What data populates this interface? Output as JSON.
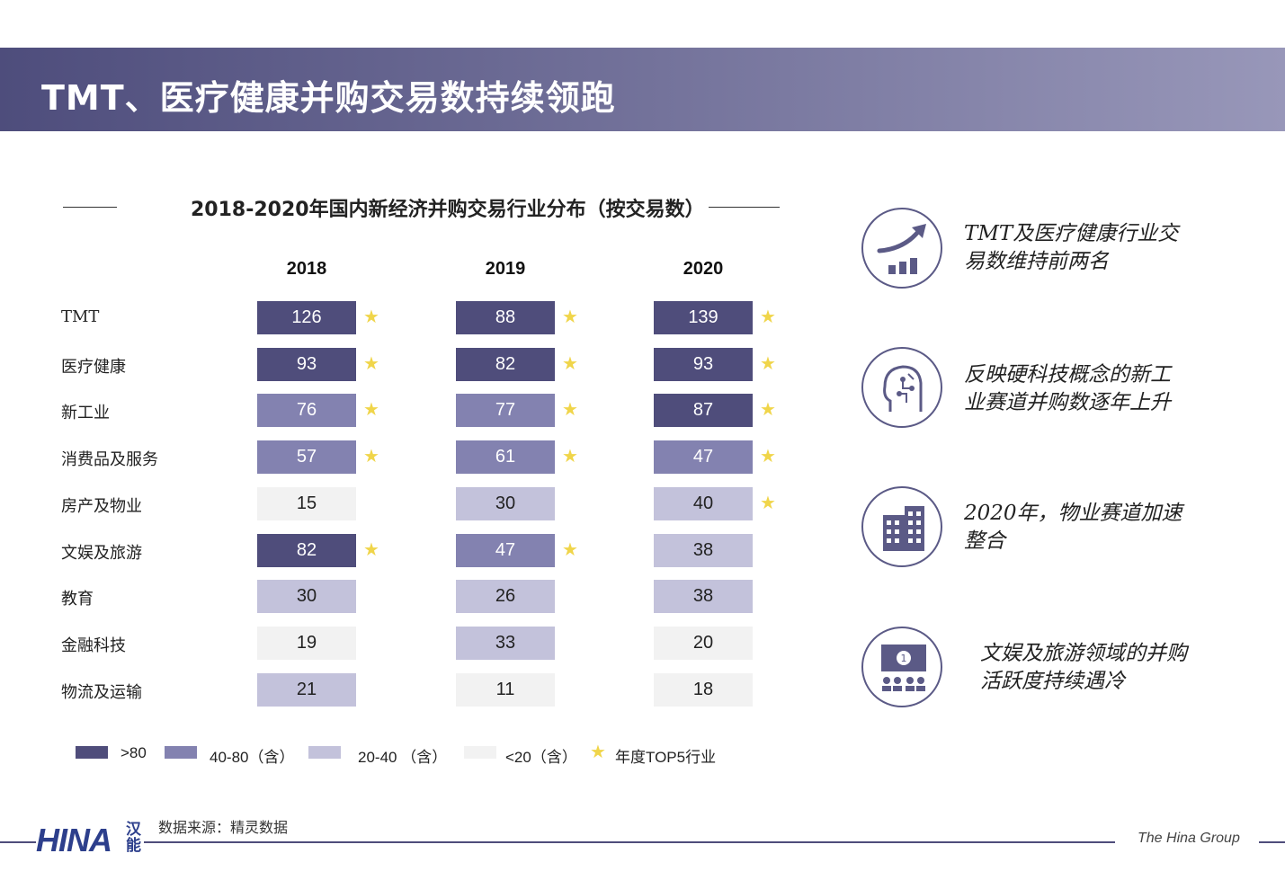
{
  "banner": {
    "title": "TMT、医疗健康并购交易数持续领跑"
  },
  "chart_data": {
    "type": "table",
    "title": "2018-2020年国内新经济并购交易行业分布（按交易数）",
    "columns": [
      "2018",
      "2019",
      "2020"
    ],
    "rows": [
      {
        "label": "TMT",
        "values": [
          126,
          88,
          139
        ],
        "top5": [
          true,
          true,
          true
        ]
      },
      {
        "label": "医疗健康",
        "values": [
          93,
          82,
          93
        ],
        "top5": [
          true,
          true,
          true
        ]
      },
      {
        "label": "新工业",
        "values": [
          76,
          77,
          87
        ],
        "top5": [
          true,
          true,
          true
        ]
      },
      {
        "label": "消费品及服务",
        "values": [
          57,
          61,
          47
        ],
        "top5": [
          true,
          true,
          true
        ]
      },
      {
        "label": "房产及物业",
        "values": [
          15,
          30,
          40
        ],
        "top5": [
          false,
          false,
          true
        ]
      },
      {
        "label": "文娱及旅游",
        "values": [
          82,
          47,
          38
        ],
        "top5": [
          true,
          true,
          false
        ]
      },
      {
        "label": "教育",
        "values": [
          30,
          26,
          38
        ],
        "top5": [
          false,
          false,
          false
        ]
      },
      {
        "label": "金融科技",
        "values": [
          19,
          33,
          20
        ],
        "top5": [
          false,
          false,
          false
        ]
      },
      {
        "label": "物流及运输",
        "values": [
          21,
          11,
          18
        ],
        "top5": [
          false,
          false,
          false
        ]
      }
    ],
    "color_scale": [
      {
        "label": ">80",
        "color": "#4f4d7b"
      },
      {
        "label": "40-80（含）",
        "color": "#8382b0"
      },
      {
        "label": "20-40 （含）",
        "color": "#c3c2db"
      },
      {
        "label": "<20（含）",
        "color": "#f2f2f2"
      }
    ],
    "star_legend": "年度TOP5行业",
    "star_color": "#f0d54a"
  },
  "insights": [
    {
      "icon": "trend-up-chart-icon",
      "text_lines": [
        "TMT及医疗健康行业交",
        "易数维持前两名"
      ]
    },
    {
      "icon": "ai-head-icon",
      "text_lines": [
        "反映硬科技概念的新工",
        "业赛道并购数逐年上升"
      ]
    },
    {
      "icon": "building-icon",
      "text_lines": [
        "2020年，物业赛道加速",
        "整合"
      ]
    },
    {
      "icon": "audience-screen-icon",
      "text_lines": [
        "文娱及旅游领域的并购",
        "活跃度持续遇冷"
      ]
    }
  ],
  "footer": {
    "source": "数据来源：精灵数据",
    "logo_text": "HINA",
    "logo_cn": "汉能",
    "brand": "The Hina Group"
  },
  "colors": {
    "accent": "#4f4d7b",
    "line": "#5b5a86"
  }
}
